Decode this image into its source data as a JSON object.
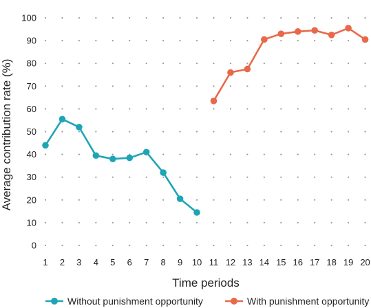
{
  "chart_data": {
    "type": "line",
    "xlabel": "Time periods",
    "ylabel": "Average contribution rate (%)",
    "ylim": [
      0,
      100
    ],
    "yticks": [
      0,
      10,
      20,
      30,
      40,
      50,
      60,
      70,
      80,
      90,
      100
    ],
    "xlim": [
      1,
      20
    ],
    "xticks": [
      1,
      2,
      3,
      4,
      5,
      6,
      7,
      8,
      9,
      10,
      11,
      12,
      13,
      14,
      15,
      16,
      17,
      18,
      19,
      20
    ],
    "grid": "dotted",
    "legend": "bottom",
    "series": [
      {
        "name": "Without punishment opportunity",
        "color": "#1ea5b5",
        "x": [
          1,
          2,
          3,
          4,
          5,
          6,
          7,
          8,
          9,
          10
        ],
        "values": [
          44,
          55.5,
          52,
          39.5,
          38,
          38.5,
          41,
          32,
          20.5,
          14.5
        ]
      },
      {
        "name": "With punishment opportunity",
        "color": "#e8694a",
        "x": [
          11,
          12,
          13,
          14,
          15,
          16,
          17,
          18,
          19,
          20
        ],
        "values": [
          63.5,
          76,
          77.5,
          90.5,
          93,
          94,
          94.5,
          92.5,
          95.5,
          90.5
        ]
      }
    ]
  }
}
